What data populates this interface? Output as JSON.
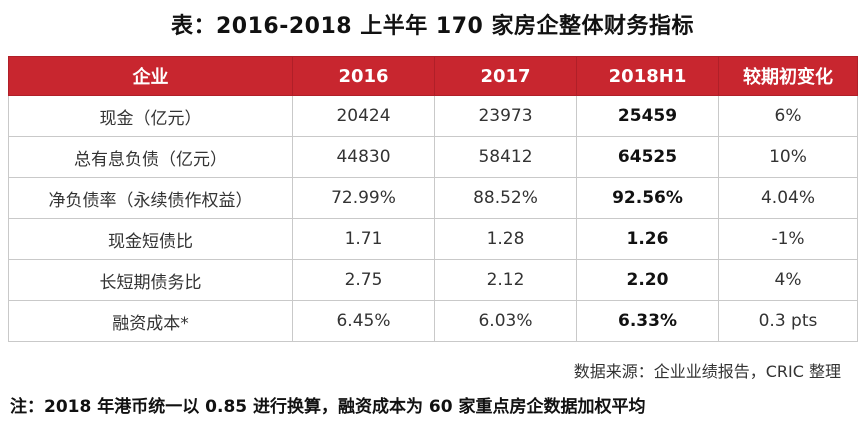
{
  "title": "表：2016-2018 上半年 170 家房企整体财务指标",
  "table": {
    "headers": [
      "企业",
      "2016",
      "2017",
      "2018H1",
      "较期初变化"
    ],
    "rows": [
      [
        "现金（亿元）",
        "20424",
        "23973",
        "25459",
        "6%"
      ],
      [
        "总有息负债（亿元）",
        "44830",
        "58412",
        "64525",
        "10%"
      ],
      [
        "净负债率（永续债作权益）",
        "72.99%",
        "88.52%",
        "92.56%",
        "4.04%"
      ],
      [
        "现金短债比",
        "1.71",
        "1.28",
        "1.26",
        "-1%"
      ],
      [
        "长短期债务比",
        "2.75",
        "2.12",
        "2.20",
        "4%"
      ],
      [
        "融资成本*",
        "6.45%",
        "6.03%",
        "6.33%",
        "0.3 pts"
      ]
    ]
  },
  "source": "数据来源：企业业绩报告，CRIC 整理",
  "note": "注：2018 年港币统一以 0.85 进行换算，融资成本为 60 家重点房企数据加权平均",
  "colors": {
    "header_bg": "#c8262f",
    "header_text": "#ffffff",
    "grid": "#c9c9c9"
  }
}
